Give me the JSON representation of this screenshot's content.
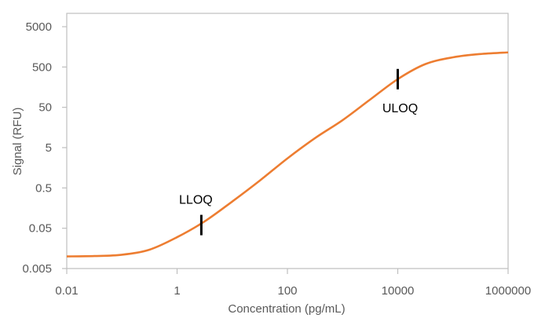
{
  "chart_data": {
    "type": "line",
    "title": "",
    "xlabel": "Concentration (pg/mL)",
    "ylabel": "Signal (RFU)",
    "x_scale": "log",
    "y_scale": "log",
    "xlim": [
      0.01,
      1000000
    ],
    "ylim": [
      0.005,
      5000
    ],
    "x_ticks": [
      "0.01",
      "1",
      "100",
      "10000",
      "1000000"
    ],
    "x_tick_values": [
      0.01,
      1,
      100,
      10000,
      1000000
    ],
    "y_ticks": [
      "0.005",
      "0.05",
      "0.5",
      "5",
      "50",
      "500",
      "5000"
    ],
    "y_tick_values": [
      0.005,
      0.05,
      0.5,
      5,
      50,
      500,
      5000
    ],
    "grid": false,
    "legend": "none",
    "series": [
      {
        "color": "#ED7D31",
        "x": [
          0.01,
          0.0316,
          0.1,
          0.316,
          1,
          3.16,
          10,
          31.6,
          100,
          316,
          1000,
          3162,
          10000,
          31623,
          100000,
          316228,
          1000000
        ],
        "y": [
          0.01,
          0.0102,
          0.011,
          0.0147,
          0.03,
          0.074,
          0.23,
          0.76,
          2.7,
          8.6,
          24,
          78,
          250,
          590,
          870,
          1050,
          1150
        ]
      }
    ],
    "annotations": [
      {
        "label": "LLOQ",
        "x": 2.75,
        "y": 0.06,
        "label_position": "above"
      },
      {
        "label": "ULOQ",
        "x": 10000,
        "y": 250,
        "label_position": "below"
      }
    ],
    "marker_color": "#000000",
    "frame_color": "#BFBFBF",
    "text_color": "#595959"
  }
}
